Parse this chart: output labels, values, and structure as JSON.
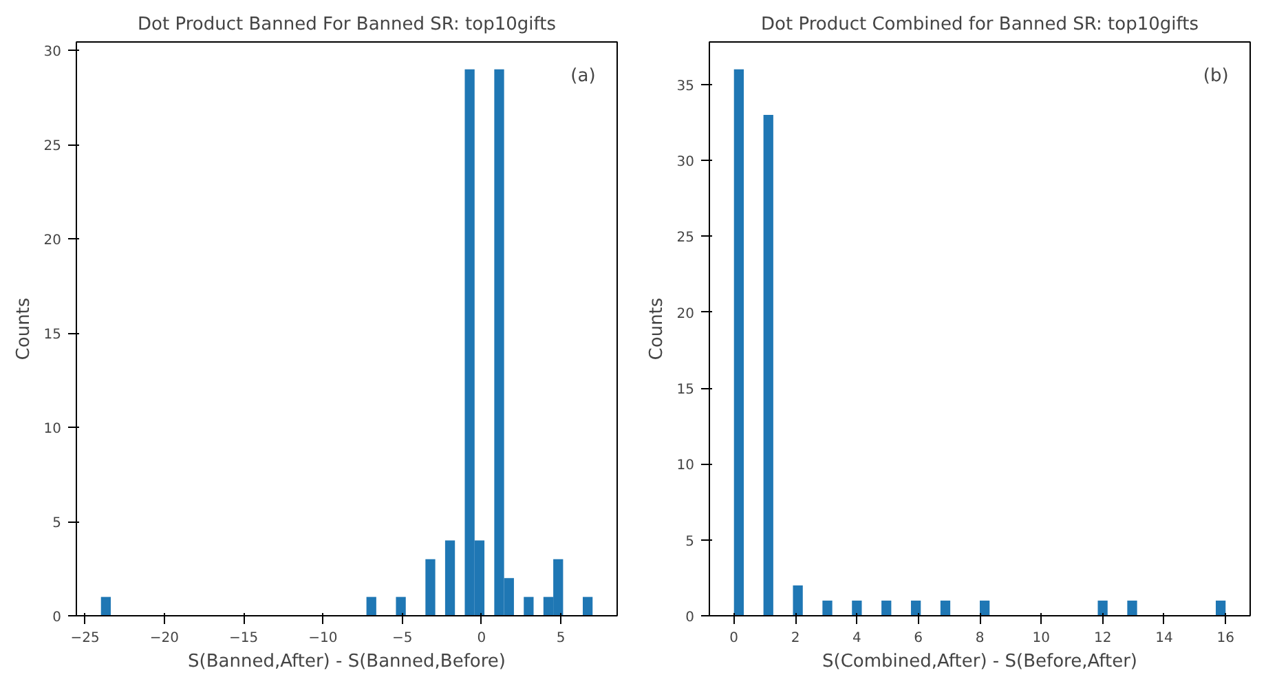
{
  "chart_data": [
    {
      "type": "histogram",
      "title": "Dot Product Banned For Banned SR: top10gifts",
      "xlabel": "S(Banned,After) - S(Banned,Before)",
      "ylabel": "Counts",
      "annotations": [
        "(a)"
      ],
      "color": "#1f77b4",
      "grid": false,
      "bins": [
        -24,
        -23.38,
        -22.76,
        -22.14,
        -21.52,
        -20.9,
        -20.28,
        -19.66,
        -19.04,
        -18.42,
        -17.8,
        -17.18,
        -16.56,
        -15.94,
        -15.32,
        -14.7,
        -14.08,
        -13.46,
        -12.84,
        -12.22,
        -11.6,
        -10.98,
        -10.36,
        -9.74,
        -9.12,
        -8.5,
        -7.88,
        -7.26,
        -6.64,
        -6.02,
        -5.4,
        -4.78,
        -4.16,
        -3.54,
        -2.92,
        -2.3,
        -1.68,
        -1.06,
        -0.44,
        0.18,
        0.8,
        1.42,
        2.04,
        2.66,
        3.28,
        3.9,
        4.52,
        5.14,
        5.76,
        6.38,
        7
      ],
      "values": [
        1,
        0,
        0,
        0,
        0,
        0,
        0,
        0,
        0,
        0,
        0,
        0,
        0,
        0,
        0,
        0,
        0,
        0,
        0,
        0,
        0,
        0,
        0,
        0,
        0,
        0,
        0,
        1,
        0,
        0,
        1,
        0,
        0,
        3,
        0,
        4,
        0,
        29,
        4,
        0,
        29,
        2,
        0,
        1,
        0,
        1,
        3,
        0,
        0,
        1
      ],
      "xlim": [
        -25.55,
        8.55
      ],
      "ylim": [
        0,
        30.45
      ],
      "xticks": [
        {
          "value": -25,
          "label": "−25"
        },
        {
          "value": -20,
          "label": "−20"
        },
        {
          "value": -15,
          "label": "−15"
        },
        {
          "value": -10,
          "label": "−10"
        },
        {
          "value": -5,
          "label": "−5"
        },
        0,
        5
      ],
      "yticks": [
        0,
        5,
        10,
        15,
        20,
        25,
        30
      ]
    },
    {
      "type": "histogram",
      "title": "Dot Product Combined for Banned SR: top10gifts",
      "xlabel": "S(Combined,After) - S(Before,After)",
      "ylabel": "Counts",
      "annotations": [
        "(b)"
      ],
      "color": "#1f77b4",
      "grid": false,
      "bins": [
        0,
        0.32,
        0.64,
        0.96,
        1.28,
        1.6,
        1.92,
        2.24,
        2.56,
        2.88,
        3.2,
        3.52,
        3.84,
        4.16,
        4.48,
        4.8,
        5.12,
        5.44,
        5.76,
        6.08,
        6.4,
        6.72,
        7.04,
        7.36,
        7.68,
        8,
        8.32,
        8.64,
        8.96,
        9.28,
        9.6,
        9.92,
        10.24,
        10.56,
        10.88,
        11.2,
        11.52,
        11.84,
        12.16,
        12.48,
        12.8,
        13.12,
        13.44,
        13.76,
        14.08,
        14.4,
        14.72,
        15.04,
        15.36,
        15.68,
        16
      ],
      "values": [
        36,
        0,
        0,
        33,
        0,
        0,
        2,
        0,
        0,
        1,
        0,
        0,
        1,
        0,
        0,
        1,
        0,
        0,
        1,
        0,
        0,
        1,
        0,
        0,
        0,
        1,
        0,
        0,
        0,
        0,
        0,
        0,
        0,
        0,
        0,
        0,
        0,
        1,
        0,
        0,
        1,
        0,
        0,
        0,
        0,
        0,
        0,
        0,
        0,
        1
      ],
      "xlim": [
        -0.8,
        16.8
      ],
      "ylim": [
        0,
        37.8
      ],
      "xticks": [
        0,
        2,
        4,
        6,
        8,
        10,
        12,
        14,
        16
      ],
      "yticks": [
        0,
        5,
        10,
        15,
        20,
        25,
        30,
        35
      ]
    }
  ]
}
